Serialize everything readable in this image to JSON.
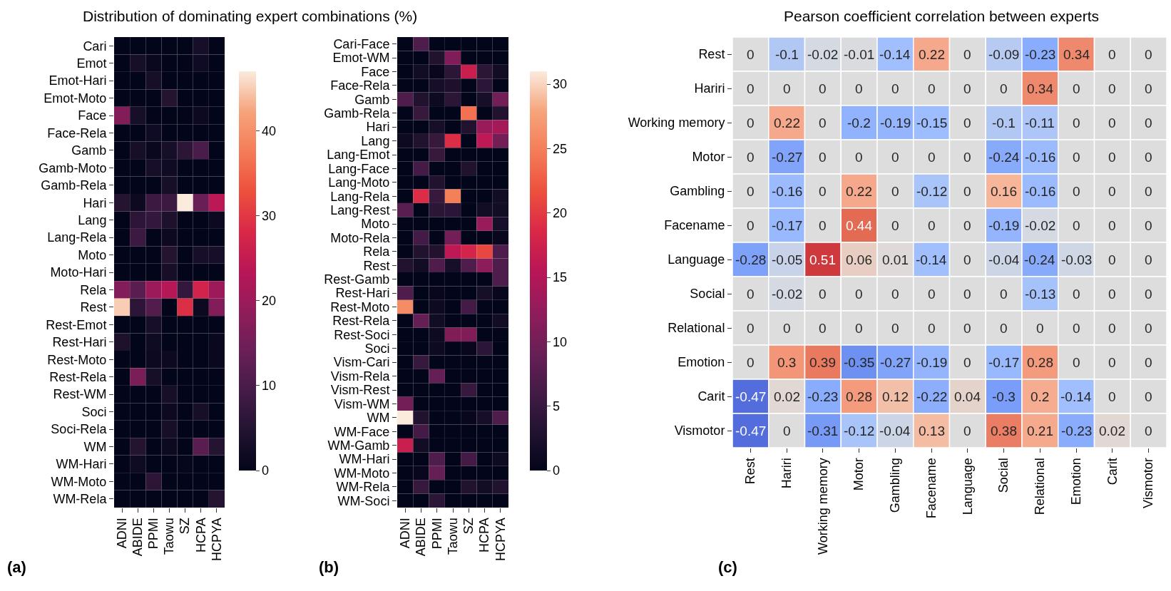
{
  "chart_data": [
    {
      "type": "heatmap",
      "title": "Distribution of dominating expert combinations (%)",
      "annotations": [
        "(a)"
      ],
      "categories": [
        "ADNI",
        "ABIDE",
        "PPMI",
        "Taowu",
        "SZ",
        "HCPA",
        "HCPYA"
      ],
      "y_categories": [
        "Cari",
        "Emot",
        "Emot-Hari",
        "Emot-Moto",
        "Face",
        "Face-Rela",
        "Gamb",
        "Gamb-Moto",
        "Gamb-Rela",
        "Hari",
        "Lang",
        "Lang-Rela",
        "Moto",
        "Moto-Hari",
        "Rela",
        "Rest",
        "Rest-Emot",
        "Rest-Hari",
        "Rest-Moto",
        "Rest-Rela",
        "Rest-WM",
        "Soci",
        "Soci-Rela",
        "WM",
        "WM-Hari",
        "WM-Moto",
        "WM-Rela"
      ],
      "cells": [
        [
          0,
          0,
          0,
          0,
          0,
          3,
          0
        ],
        [
          0,
          3,
          1,
          0,
          0,
          2,
          0
        ],
        [
          0,
          0,
          3,
          0,
          0,
          0,
          0
        ],
        [
          0,
          0,
          0,
          5,
          0,
          0,
          0
        ],
        [
          17,
          3,
          0,
          0,
          0,
          1.5,
          0
        ],
        [
          0,
          0,
          2,
          0,
          0,
          0,
          0
        ],
        [
          0,
          3,
          1,
          3,
          6,
          10,
          0
        ],
        [
          0,
          0,
          3,
          2,
          0,
          0,
          0
        ],
        [
          0,
          0,
          0,
          3,
          0,
          0,
          0
        ],
        [
          5,
          1.5,
          8,
          8,
          47,
          14,
          24
        ],
        [
          0,
          6,
          7,
          4,
          0,
          0,
          1.5
        ],
        [
          0,
          8,
          0,
          1.5,
          0,
          0,
          0
        ],
        [
          0,
          0,
          0,
          5,
          0,
          3,
          3
        ],
        [
          0,
          0,
          0,
          3,
          0,
          0,
          0
        ],
        [
          17,
          12,
          20,
          23,
          7,
          27,
          20
        ],
        [
          45,
          6,
          11,
          0,
          29,
          1.5,
          17
        ],
        [
          0,
          0,
          3,
          0,
          0,
          0,
          0
        ],
        [
          4,
          0,
          2,
          0,
          0,
          0,
          1
        ],
        [
          0,
          0,
          1.5,
          1.5,
          0,
          0,
          1
        ],
        [
          0,
          16,
          3,
          0,
          0,
          0,
          0
        ],
        [
          0,
          0,
          0,
          3,
          0,
          0,
          0
        ],
        [
          0,
          0,
          0,
          1.5,
          0,
          3,
          0
        ],
        [
          0,
          0,
          0,
          3,
          0,
          0,
          0
        ],
        [
          0,
          5,
          0,
          1.5,
          0,
          12,
          5
        ],
        [
          0,
          2,
          0,
          0,
          0.5,
          0,
          0
        ],
        [
          0,
          0,
          6,
          0,
          0,
          0,
          0
        ],
        [
          0,
          0,
          0,
          0,
          0,
          0,
          5
        ]
      ],
      "clim": [
        0,
        47
      ],
      "cticks": [
        0,
        10,
        20,
        30,
        40
      ]
    },
    {
      "type": "heatmap",
      "annotations": [
        "(b)"
      ],
      "categories": [
        "ADNI",
        "ABIDE",
        "PPMI",
        "Taowu",
        "SZ",
        "HCPA",
        "HCPYA"
      ],
      "y_categories": [
        "Cari-Face",
        "Emot-WM",
        "Face",
        "Face-Rela",
        "Gamb",
        "Gamb-Rela",
        "Hari",
        "Lang",
        "Lang-Emot",
        "Lang-Face",
        "Lang-Moto",
        "Lang-Rela",
        "Lang-Rest",
        "Moto",
        "Moto-Rela",
        "Rela",
        "Rest",
        "Rest-Gamb",
        "Rest-Hari",
        "Rest-Moto",
        "Rest-Rela",
        "Rest-Soci",
        "Soci",
        "Vism-Cari",
        "Vism-Rela",
        "Vism-Rest",
        "Vism-WM",
        "WM",
        "WM-Face",
        "WM-Gamb",
        "WM-Hari",
        "WM-Moto",
        "WM-Rela",
        "WM-Soci"
      ],
      "cells": [
        [
          0,
          7,
          0,
          0,
          0,
          0,
          0
        ],
        [
          0,
          0,
          3,
          11,
          0,
          0,
          0
        ],
        [
          0,
          1.5,
          0.5,
          4,
          17,
          4,
          1.5
        ],
        [
          0,
          0,
          2,
          2.5,
          0,
          4,
          0
        ],
        [
          7,
          3,
          1,
          4,
          0,
          2,
          10
        ],
        [
          0,
          5,
          0,
          0,
          24,
          0,
          3
        ],
        [
          0,
          0,
          2,
          0,
          3,
          13,
          14
        ],
        [
          1,
          3,
          5,
          19,
          0,
          16,
          10
        ],
        [
          0,
          0,
          5,
          0,
          0,
          0,
          0
        ],
        [
          0,
          6,
          0,
          0,
          3,
          0,
          0
        ],
        [
          0,
          0,
          3,
          0,
          0,
          0,
          0
        ],
        [
          0,
          19,
          5,
          25,
          0,
          0,
          1.5
        ],
        [
          8,
          0,
          4,
          4,
          0,
          1.5,
          1.5
        ],
        [
          0,
          0,
          0,
          0,
          0,
          13,
          2
        ],
        [
          0,
          6,
          0,
          10,
          0,
          0,
          0.5
        ],
        [
          0,
          3,
          3,
          16,
          18,
          21,
          7
        ],
        [
          3,
          1.5,
          7,
          2,
          7,
          12,
          7
        ],
        [
          0,
          0,
          0,
          0,
          0,
          0,
          7
        ],
        [
          7,
          0,
          0.5,
          0,
          0,
          2,
          0.5
        ],
        [
          26,
          0,
          1,
          0,
          6,
          0,
          0
        ],
        [
          0,
          9,
          1.5,
          0,
          0,
          0,
          1.5
        ],
        [
          0,
          0,
          1,
          11,
          11,
          0,
          0
        ],
        [
          0,
          0,
          1,
          0,
          0.5,
          4,
          0
        ],
        [
          0,
          5,
          0,
          0,
          0,
          0,
          0
        ],
        [
          0,
          0,
          9,
          0,
          0,
          0,
          0
        ],
        [
          0,
          0,
          0,
          0,
          5,
          0,
          0
        ],
        [
          10,
          0,
          0,
          0,
          0,
          0,
          0
        ],
        [
          31,
          3,
          0,
          0,
          0.5,
          2,
          7
        ],
        [
          0,
          6,
          0,
          0,
          0,
          0,
          0
        ],
        [
          17,
          1.5,
          0,
          0,
          0,
          0,
          0
        ],
        [
          0,
          0,
          7,
          0,
          6,
          0,
          1
        ],
        [
          0,
          0.5,
          9,
          0,
          0,
          0,
          0
        ],
        [
          0,
          5,
          0,
          0,
          3,
          1.5,
          3
        ],
        [
          0,
          0,
          4,
          0,
          0,
          0,
          0
        ]
      ],
      "clim": [
        0,
        31
      ],
      "cticks": [
        0,
        5,
        10,
        15,
        20,
        25,
        30
      ]
    },
    {
      "type": "heatmap",
      "title": "Pearson coefficient correlation between experts",
      "annotations": [
        "(c)"
      ],
      "categories": [
        "Rest",
        "Hariri",
        "Working memory",
        "Motor",
        "Gambling",
        "Facename",
        "Language",
        "Social",
        "Relational",
        "Emotion",
        "Carit",
        "Vismotor"
      ],
      "y_categories": [
        "Rest",
        "Hariri",
        "Working memory",
        "Motor",
        "Gambling",
        "Facename",
        "Language",
        "Social",
        "Relational",
        "Emotion",
        "Carit",
        "Vismotor"
      ],
      "cells": [
        [
          0,
          -0.1,
          -0.02,
          -0.01,
          -0.14,
          0.22,
          0,
          -0.09,
          -0.23,
          0.34,
          0,
          0
        ],
        [
          0,
          0,
          0,
          0,
          0,
          0,
          0,
          0,
          0.34,
          0,
          0,
          0
        ],
        [
          0,
          0.22,
          0,
          -0.2,
          -0.19,
          -0.15,
          0,
          -0.1,
          -0.11,
          0,
          0,
          0
        ],
        [
          0,
          -0.27,
          0,
          0,
          0,
          0,
          0,
          -0.24,
          -0.16,
          0,
          0,
          0
        ],
        [
          0,
          -0.16,
          0,
          0.22,
          0,
          -0.12,
          0,
          0.16,
          -0.16,
          0,
          0,
          0
        ],
        [
          0,
          -0.17,
          0,
          0.44,
          0,
          0,
          0,
          -0.19,
          -0.02,
          0,
          0,
          0
        ],
        [
          -0.28,
          -0.05,
          0.51,
          0.06,
          0.01,
          -0.14,
          0,
          -0.04,
          -0.24,
          -0.03,
          0,
          0
        ],
        [
          0,
          -0.02,
          0,
          0,
          0,
          0,
          0,
          0,
          -0.13,
          0,
          0,
          0
        ],
        [
          0,
          0,
          0,
          0,
          0,
          0,
          0,
          0,
          0,
          0,
          0,
          0
        ],
        [
          0,
          0.3,
          0.39,
          -0.35,
          -0.27,
          -0.19,
          0,
          -0.17,
          0.28,
          0,
          0,
          0
        ],
        [
          -0.47,
          0.02,
          -0.23,
          0.28,
          0.12,
          -0.22,
          0.04,
          -0.3,
          0.2,
          -0.14,
          0,
          0
        ],
        [
          -0.47,
          0,
          -0.31,
          -0.12,
          -0.04,
          0.13,
          0,
          0.38,
          0.21,
          -0.23,
          0.02,
          0
        ]
      ],
      "data_labels": true
    }
  ]
}
